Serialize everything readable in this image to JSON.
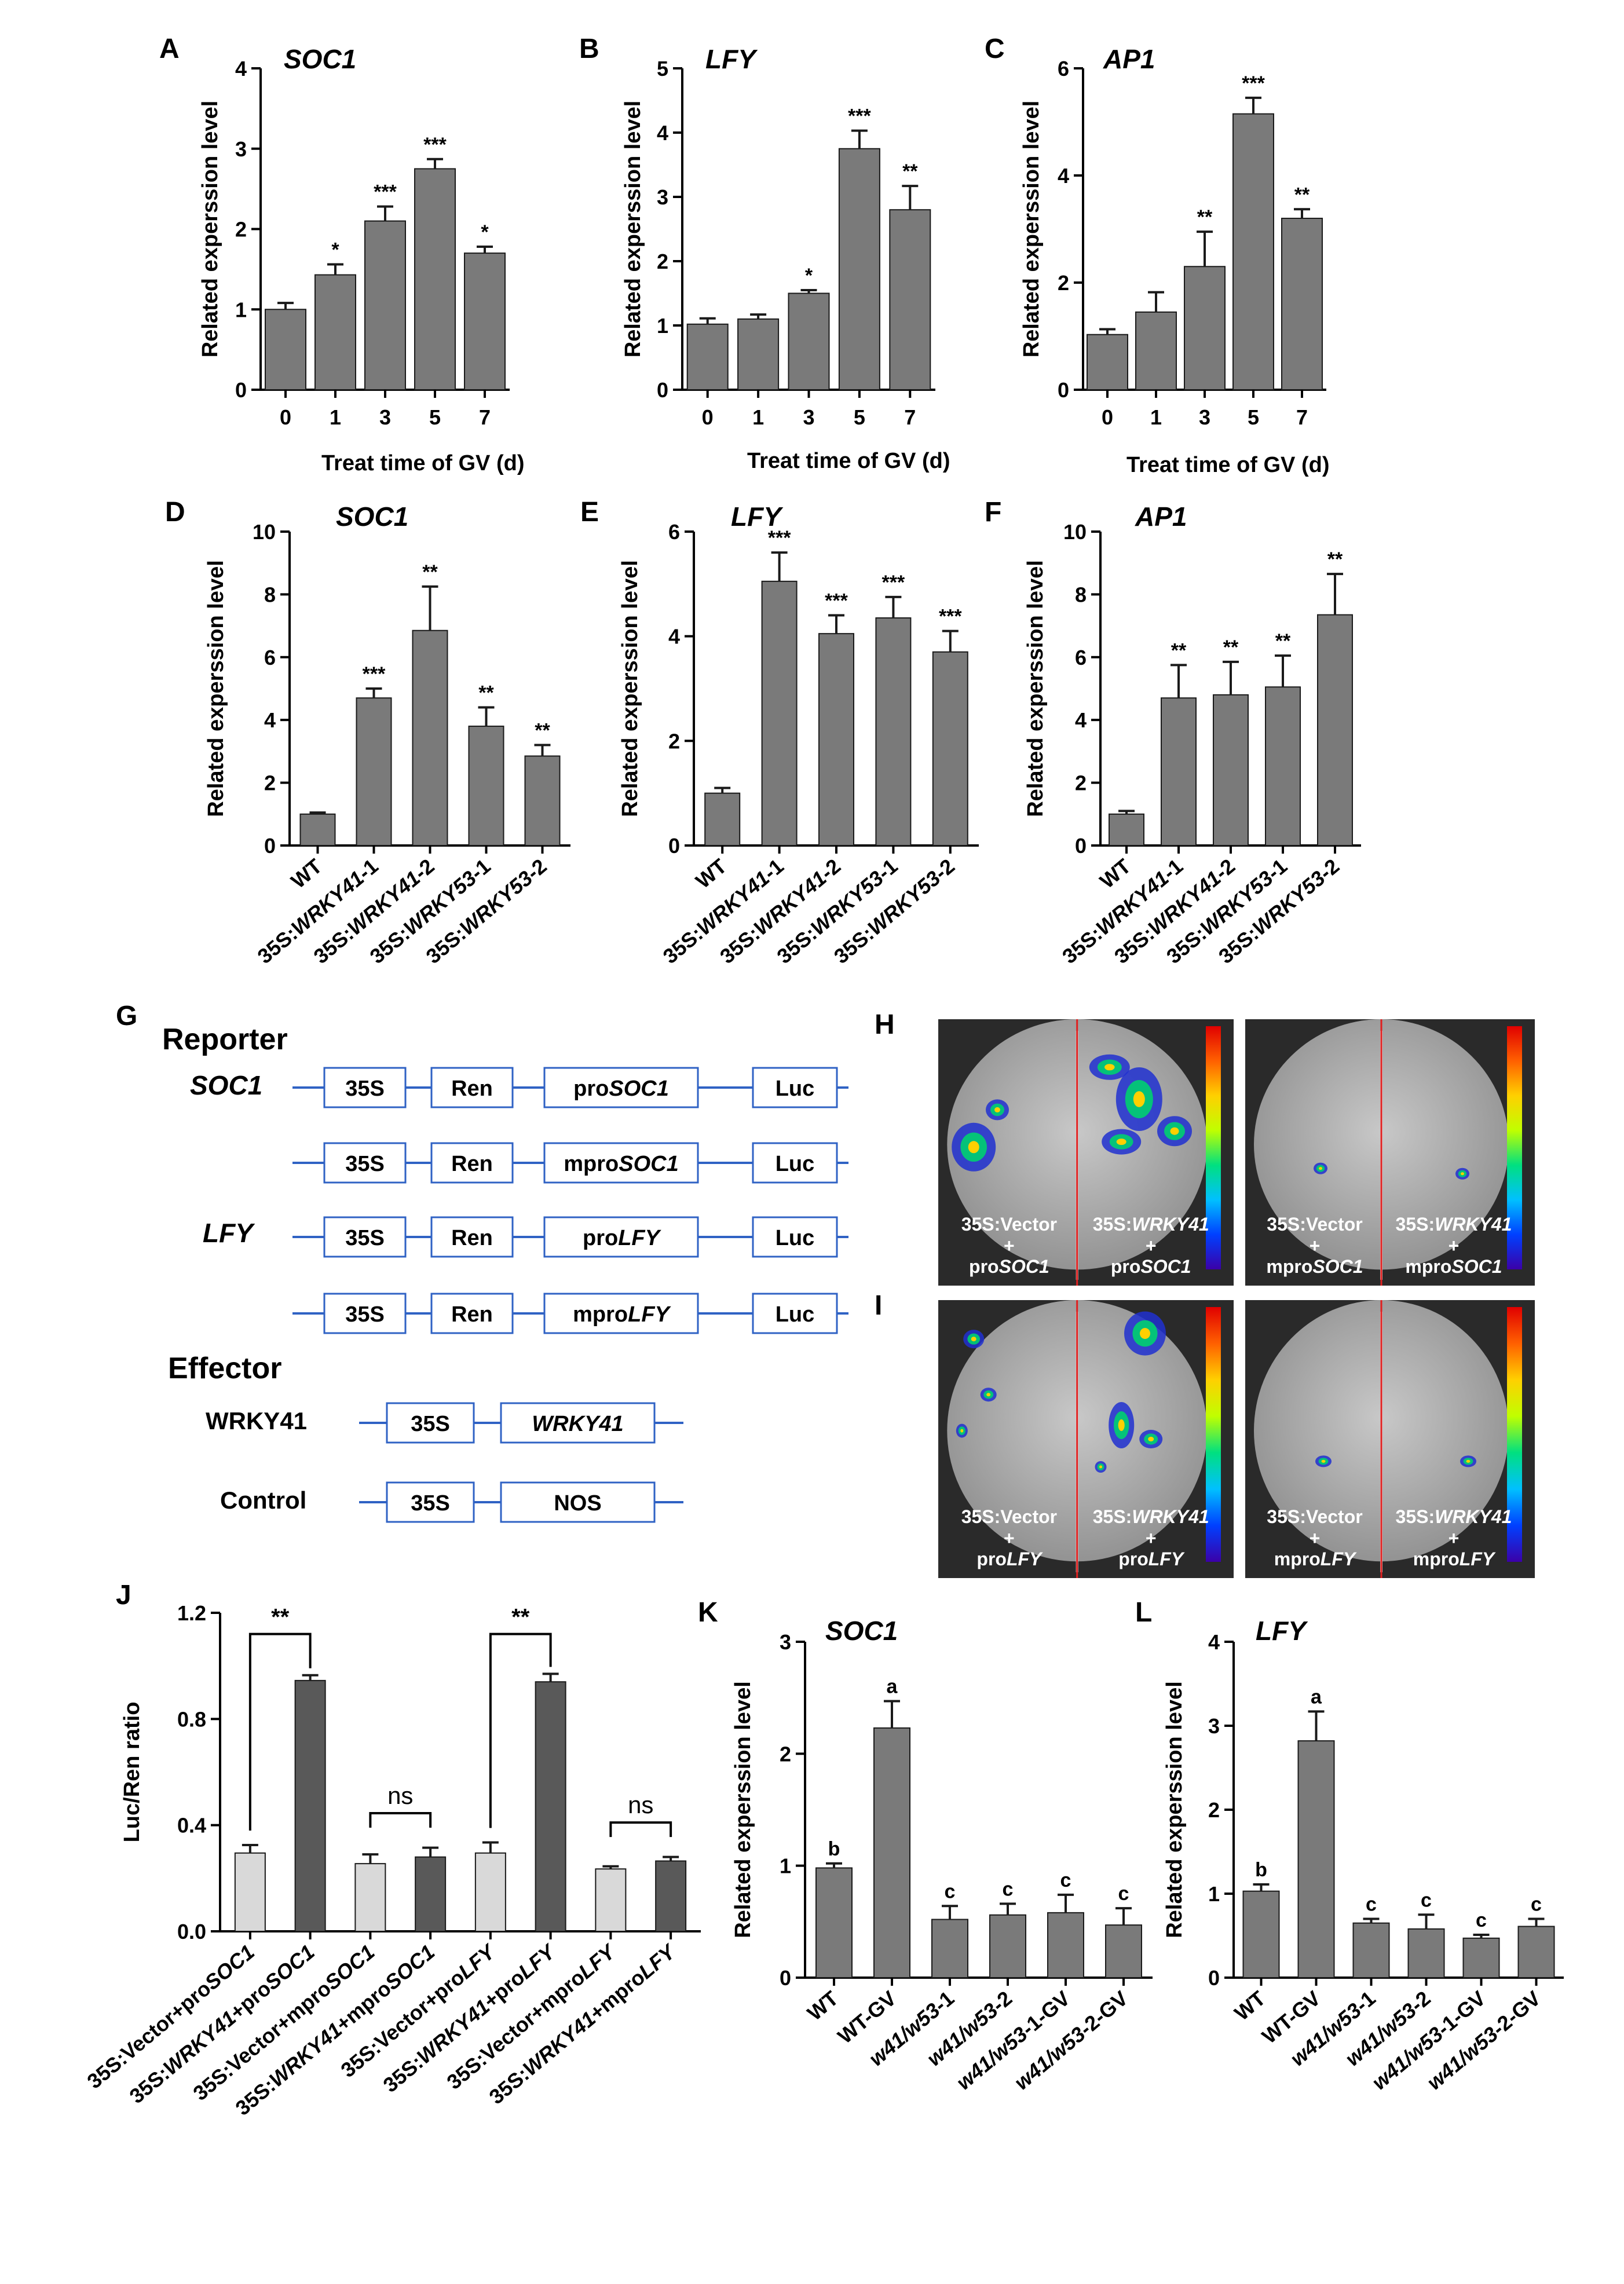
{
  "chart_data": [
    {
      "panel": "A",
      "type": "bar",
      "title": "SOC1",
      "xlabel": "Treat time of GV (d)",
      "ylabel": "Related experssion level",
      "ylim": [
        0,
        4
      ],
      "yticks": [
        0,
        1,
        2,
        3,
        4
      ],
      "categories": [
        "0",
        "1",
        "3",
        "5",
        "7"
      ],
      "values": [
        1.0,
        1.43,
        2.1,
        2.75,
        1.7
      ],
      "errors": [
        0.08,
        0.13,
        0.18,
        0.12,
        0.08
      ],
      "annotations": [
        "",
        "*",
        "***",
        "***",
        "*"
      ]
    },
    {
      "panel": "B",
      "type": "bar",
      "title": "LFY",
      "xlabel": "Treat time of GV (d)",
      "ylabel": "Related experssion level",
      "ylim": [
        0,
        5
      ],
      "yticks": [
        0,
        1,
        2,
        3,
        4,
        5
      ],
      "categories": [
        "0",
        "1",
        "3",
        "5",
        "7"
      ],
      "values": [
        1.02,
        1.1,
        1.5,
        3.75,
        2.8
      ],
      "errors": [
        0.09,
        0.07,
        0.05,
        0.28,
        0.37
      ],
      "annotations": [
        "",
        "",
        "*",
        "***",
        "**"
      ]
    },
    {
      "panel": "C",
      "type": "bar",
      "title": "AP1",
      "xlabel": "Treat time of GV (d)",
      "ylabel": "Related experssion level",
      "ylim": [
        0,
        6
      ],
      "yticks": [
        0,
        2,
        4,
        6
      ],
      "categories": [
        "0",
        "1",
        "3",
        "5",
        "7"
      ],
      "values": [
        1.03,
        1.45,
        2.3,
        5.15,
        3.2
      ],
      "errors": [
        0.1,
        0.37,
        0.65,
        0.3,
        0.17
      ],
      "annotations": [
        "",
        "",
        "**",
        "***",
        "**"
      ]
    },
    {
      "panel": "D",
      "type": "bar",
      "title": "SOC1",
      "xlabel": "",
      "ylabel": "Related experssion level",
      "ylim": [
        0,
        10
      ],
      "yticks": [
        0,
        2,
        4,
        6,
        8,
        10
      ],
      "categories": [
        "WT",
        "35S:WRKY41-1",
        "35S:WRKY41-2",
        "35S:WRKY53-1",
        "35S:WRKY53-2"
      ],
      "values": [
        1.0,
        4.7,
        6.85,
        3.8,
        2.85
      ],
      "errors": [
        0.05,
        0.3,
        1.4,
        0.6,
        0.35
      ],
      "annotations": [
        "",
        "***",
        "**",
        "**",
        "**"
      ]
    },
    {
      "panel": "E",
      "type": "bar",
      "title": "LFY",
      "xlabel": "",
      "ylabel": "Related experssion level",
      "ylim": [
        0,
        6
      ],
      "yticks": [
        0,
        2,
        4,
        6
      ],
      "categories": [
        "WT",
        "35S:WRKY41-1",
        "35S:WRKY41-2",
        "35S:WRKY53-1",
        "35S:WRKY53-2"
      ],
      "values": [
        1.0,
        5.05,
        4.05,
        4.35,
        3.7
      ],
      "errors": [
        0.1,
        0.55,
        0.35,
        0.4,
        0.4
      ],
      "annotations": [
        "",
        "***",
        "***",
        "***",
        "***"
      ]
    },
    {
      "panel": "F",
      "type": "bar",
      "title": "AP1",
      "xlabel": "",
      "ylabel": "Related experssion level",
      "ylim": [
        0,
        10
      ],
      "yticks": [
        0,
        2,
        4,
        6,
        8,
        10
      ],
      "categories": [
        "WT",
        "35S:WRKY41-1",
        "35S:WRKY41-2",
        "35S:WRKY53-1",
        "35S:WRKY53-2"
      ],
      "values": [
        1.0,
        4.7,
        4.8,
        5.05,
        7.35
      ],
      "errors": [
        0.1,
        1.05,
        1.05,
        1.0,
        1.3
      ],
      "annotations": [
        "",
        "**",
        "**",
        "**",
        "**"
      ]
    },
    {
      "panel": "J",
      "type": "bar",
      "title": "",
      "xlabel": "",
      "ylabel": "Luc/Ren ratio",
      "ylim": [
        0,
        1.2
      ],
      "yticks": [
        "0.0",
        "0.4",
        "0.8",
        "1.2"
      ],
      "categories": [
        "35S:Vector+proSOC1",
        "35S:WRKY41+proSOC1",
        "35S:Vector+mproSOC1",
        "35S:WRKY41+mproSOC1",
        "35S:Vector+proLFY",
        "35S:WRKY41+proLFY",
        "35S:Vector+mproLFY",
        "35S:WRKY41+mproLFY"
      ],
      "values": [
        0.295,
        0.945,
        0.255,
        0.28,
        0.295,
        0.94,
        0.235,
        0.265
      ],
      "errors": [
        0.03,
        0.02,
        0.035,
        0.035,
        0.04,
        0.03,
        0.01,
        0.015
      ],
      "colors": [
        "#d9d9d9",
        "#595959",
        "#d9d9d9",
        "#595959",
        "#d9d9d9",
        "#595959",
        "#d9d9d9",
        "#595959"
      ],
      "brackets": [
        {
          "from": 0,
          "to": 1,
          "label": "**"
        },
        {
          "from": 2,
          "to": 3,
          "label": "ns"
        },
        {
          "from": 4,
          "to": 5,
          "label": "**"
        },
        {
          "from": 6,
          "to": 7,
          "label": "ns"
        }
      ]
    },
    {
      "panel": "K",
      "type": "bar",
      "title": "SOC1",
      "xlabel": "",
      "ylabel": "Related experssion level",
      "ylim": [
        0,
        3
      ],
      "yticks": [
        0,
        1,
        2,
        3
      ],
      "categories": [
        "WT",
        "WT-GV",
        "w41/w53-1",
        "w41/w53-2",
        "w41/w53-1-GV",
        "w41/w53-2-GV"
      ],
      "values": [
        0.98,
        2.23,
        0.52,
        0.56,
        0.58,
        0.47
      ],
      "errors": [
        0.04,
        0.24,
        0.12,
        0.1,
        0.16,
        0.15
      ],
      "annotations": [
        "b",
        "a",
        "c",
        "c",
        "c",
        "c"
      ]
    },
    {
      "panel": "L",
      "type": "bar",
      "title": "LFY",
      "xlabel": "",
      "ylabel": "Related experssion level",
      "ylim": [
        0,
        4
      ],
      "yticks": [
        0,
        1,
        2,
        3,
        4
      ],
      "categories": [
        "WT",
        "WT-GV",
        "w41/w53-1",
        "w41/w53-2",
        "w41/w53-1-GV",
        "w41/w53-2-GV"
      ],
      "values": [
        1.03,
        2.82,
        0.65,
        0.58,
        0.47,
        0.61
      ],
      "errors": [
        0.08,
        0.35,
        0.05,
        0.17,
        0.04,
        0.09
      ],
      "annotations": [
        "b",
        "a",
        "c",
        "c",
        "c",
        "c"
      ]
    }
  ],
  "panel_g": {
    "letter": "G",
    "reporter_heading": "Reporter",
    "effector_heading": "Effector",
    "gene_soc1": "SOC1",
    "gene_lfy": "LFY",
    "box_35s": "35S",
    "box_ren": "Ren",
    "box_luc": "Luc",
    "box_nos": "NOS",
    "pro_prefix": "pro",
    "mpro_prefix": "mpro",
    "promoter_soc1": "SOC1",
    "promoter_lfy": "LFY",
    "wrky41_name": "WRKY41",
    "control_name": "Control",
    "wrky41_box": "WRKY41"
  },
  "panel_h": {
    "letter": "H",
    "left_vector": "35S:",
    "vector_word": "Vector",
    "wrky_word": "WRKY41",
    "plus": "+",
    "pro": "pro",
    "mpro": "mpro",
    "gene": "SOC1"
  },
  "panel_i": {
    "letter": "I",
    "gene": "LFY"
  }
}
